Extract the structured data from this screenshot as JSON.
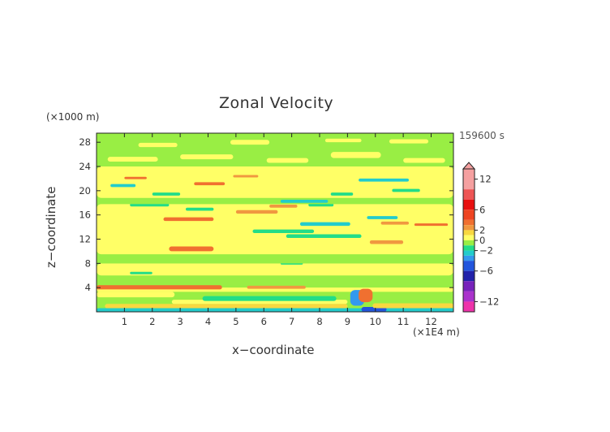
{
  "chart_data": {
    "type": "heatmap",
    "title": "Zonal Velocity",
    "xlabel": "x−coordinate",
    "ylabel": "z−coordinate",
    "x_unit": "(×1E4 m)",
    "y_unit": "(×1000 m)",
    "time_label": "159600 s",
    "xlim": [
      0,
      12.8
    ],
    "ylim": [
      0,
      29.5
    ],
    "x_ticks": [
      1,
      2,
      3,
      4,
      5,
      6,
      7,
      8,
      9,
      10,
      11,
      12
    ],
    "y_ticks": [
      4,
      8,
      12,
      16,
      20,
      24,
      28
    ],
    "colorbar": {
      "range": [
        -14,
        14
      ],
      "tick_labels": [
        "12",
        "6",
        "2",
        "0",
        "−2",
        "−6",
        "−12"
      ],
      "tick_values": [
        12,
        6,
        2,
        0,
        -2,
        -6,
        -12
      ],
      "bands": [
        {
          "from": 10,
          "to": 14,
          "color": "#f5a0a0"
        },
        {
          "from": 8,
          "to": 10,
          "color": "#ee5555"
        },
        {
          "from": 6,
          "to": 8,
          "color": "#e81010"
        },
        {
          "from": 4,
          "to": 6,
          "color": "#ee4422"
        },
        {
          "from": 3,
          "to": 4,
          "color": "#f07030"
        },
        {
          "from": 2,
          "to": 3,
          "color": "#f09840"
        },
        {
          "from": 1,
          "to": 2,
          "color": "#f8d840"
        },
        {
          "from": 0,
          "to": 1,
          "color": "#ffff66"
        },
        {
          "from": -1,
          "to": 0,
          "color": "#99ee44"
        },
        {
          "from": -2,
          "to": -1,
          "color": "#22dd88"
        },
        {
          "from": -3,
          "to": -2,
          "color": "#22cccc"
        },
        {
          "from": -4,
          "to": -3,
          "color": "#3399ee"
        },
        {
          "from": -6,
          "to": -4,
          "color": "#2255dd"
        },
        {
          "from": -8,
          "to": -6,
          "color": "#2222aa"
        },
        {
          "from": -10,
          "to": -8,
          "color": "#7722bb"
        },
        {
          "from": -12,
          "to": -10,
          "color": "#aa33cc"
        },
        {
          "from": -14,
          "to": -12,
          "color": "#ee33aa"
        }
      ]
    },
    "background_value_color": "#99ee44",
    "features": [
      {
        "x0": 0.0,
        "x1": 12.8,
        "y0": 0.0,
        "y1": 0.6,
        "color": "#22cccc"
      },
      {
        "x0": 0.3,
        "x1": 9.0,
        "y0": 0.6,
        "y1": 1.3,
        "color": "#f8d840"
      },
      {
        "x0": 2.7,
        "x1": 9.0,
        "y0": 1.3,
        "y1": 2.0,
        "color": "#ffff66"
      },
      {
        "x0": 3.8,
        "x1": 8.6,
        "y0": 1.8,
        "y1": 2.6,
        "color": "#22dd88"
      },
      {
        "x0": 0.0,
        "x1": 2.8,
        "y0": 2.4,
        "y1": 3.3,
        "color": "#ffff66"
      },
      {
        "x0": 0.0,
        "x1": 12.8,
        "y0": 3.3,
        "y1": 4.0,
        "color": "#ffff66"
      },
      {
        "x0": 0.0,
        "x1": 4.5,
        "y0": 3.7,
        "y1": 4.4,
        "color": "#f07030"
      },
      {
        "x0": 5.4,
        "x1": 7.5,
        "y0": 3.8,
        "y1": 4.3,
        "color": "#f09840"
      },
      {
        "x0": 9.1,
        "x1": 9.6,
        "y0": 1.0,
        "y1": 3.6,
        "color": "#3399ee"
      },
      {
        "x0": 9.4,
        "x1": 9.9,
        "y0": 1.6,
        "y1": 3.8,
        "color": "#f07030"
      },
      {
        "x0": 9.5,
        "x1": 10.4,
        "y0": 0.0,
        "y1": 0.8,
        "color": "#2255dd"
      },
      {
        "x0": 9.9,
        "x1": 12.8,
        "y0": 0.6,
        "y1": 1.4,
        "color": "#f8d840"
      },
      {
        "x0": 0.0,
        "x1": 12.8,
        "y0": 4.4,
        "y1": 6.0,
        "color": "#99ee44"
      },
      {
        "x0": 0.0,
        "x1": 12.8,
        "y0": 6.0,
        "y1": 8.0,
        "color": "#ffff66"
      },
      {
        "x0": 1.2,
        "x1": 2.0,
        "y0": 6.2,
        "y1": 6.6,
        "color": "#22dd88"
      },
      {
        "x0": 6.6,
        "x1": 7.4,
        "y0": 7.8,
        "y1": 8.2,
        "color": "#22dd88"
      },
      {
        "x0": 0.0,
        "x1": 12.8,
        "y0": 8.0,
        "y1": 9.5,
        "color": "#99ee44"
      },
      {
        "x0": 0.0,
        "x1": 12.8,
        "y0": 9.5,
        "y1": 17.8,
        "color": "#ffff66"
      },
      {
        "x0": 2.6,
        "x1": 4.2,
        "y0": 10.0,
        "y1": 10.8,
        "color": "#f07030"
      },
      {
        "x0": 6.8,
        "x1": 9.5,
        "y0": 12.2,
        "y1": 12.8,
        "color": "#22dd88"
      },
      {
        "x0": 9.8,
        "x1": 11.0,
        "y0": 11.2,
        "y1": 11.8,
        "color": "#f09840"
      },
      {
        "x0": 5.6,
        "x1": 7.8,
        "y0": 13.0,
        "y1": 13.6,
        "color": "#22dd88"
      },
      {
        "x0": 7.3,
        "x1": 9.1,
        "y0": 14.2,
        "y1": 14.8,
        "color": "#22cccc"
      },
      {
        "x0": 10.2,
        "x1": 11.2,
        "y0": 14.4,
        "y1": 14.9,
        "color": "#f09840"
      },
      {
        "x0": 11.4,
        "x1": 12.6,
        "y0": 14.2,
        "y1": 14.6,
        "color": "#f07030"
      },
      {
        "x0": 2.4,
        "x1": 4.2,
        "y0": 15.0,
        "y1": 15.6,
        "color": "#f07030"
      },
      {
        "x0": 9.7,
        "x1": 10.8,
        "y0": 15.3,
        "y1": 15.8,
        "color": "#22cccc"
      },
      {
        "x0": 5.0,
        "x1": 6.5,
        "y0": 16.2,
        "y1": 16.8,
        "color": "#f09840"
      },
      {
        "x0": 3.2,
        "x1": 4.2,
        "y0": 16.7,
        "y1": 17.2,
        "color": "#22dd88"
      },
      {
        "x0": 1.2,
        "x1": 2.6,
        "y0": 17.4,
        "y1": 17.9,
        "color": "#22dd88"
      },
      {
        "x0": 6.2,
        "x1": 7.2,
        "y0": 17.2,
        "y1": 17.7,
        "color": "#f09840"
      },
      {
        "x0": 7.6,
        "x1": 8.5,
        "y0": 17.4,
        "y1": 17.9,
        "color": "#22dd88"
      },
      {
        "x0": 0.0,
        "x1": 12.8,
        "y0": 17.8,
        "y1": 18.8,
        "color": "#99ee44"
      },
      {
        "x0": 6.6,
        "x1": 8.3,
        "y0": 18.0,
        "y1": 18.5,
        "color": "#22cccc"
      },
      {
        "x0": 0.0,
        "x1": 12.8,
        "y0": 18.8,
        "y1": 24.0,
        "color": "#ffff66"
      },
      {
        "x0": 2.0,
        "x1": 3.0,
        "y0": 19.2,
        "y1": 19.7,
        "color": "#22dd88"
      },
      {
        "x0": 8.4,
        "x1": 9.2,
        "y0": 19.2,
        "y1": 19.7,
        "color": "#22dd88"
      },
      {
        "x0": 10.6,
        "x1": 11.6,
        "y0": 19.8,
        "y1": 20.3,
        "color": "#22dd88"
      },
      {
        "x0": 0.5,
        "x1": 1.4,
        "y0": 20.6,
        "y1": 21.1,
        "color": "#22cccc"
      },
      {
        "x0": 3.5,
        "x1": 4.6,
        "y0": 20.9,
        "y1": 21.4,
        "color": "#f07030"
      },
      {
        "x0": 9.4,
        "x1": 11.2,
        "y0": 21.5,
        "y1": 22.0,
        "color": "#22cccc"
      },
      {
        "x0": 1.0,
        "x1": 1.8,
        "y0": 21.9,
        "y1": 22.3,
        "color": "#f07030"
      },
      {
        "x0": 4.9,
        "x1": 5.8,
        "y0": 22.2,
        "y1": 22.6,
        "color": "#f09840"
      },
      {
        "x0": 0.0,
        "x1": 12.8,
        "y0": 24.0,
        "y1": 29.5,
        "color": "#99ee44"
      },
      {
        "x0": 0.4,
        "x1": 2.2,
        "y0": 24.8,
        "y1": 25.6,
        "color": "#ffff66"
      },
      {
        "x0": 3.0,
        "x1": 4.9,
        "y0": 25.2,
        "y1": 26.0,
        "color": "#ffff66"
      },
      {
        "x0": 6.1,
        "x1": 7.6,
        "y0": 24.6,
        "y1": 25.4,
        "color": "#ffff66"
      },
      {
        "x0": 8.4,
        "x1": 10.2,
        "y0": 25.4,
        "y1": 26.4,
        "color": "#ffff66"
      },
      {
        "x0": 11.0,
        "x1": 12.5,
        "y0": 24.6,
        "y1": 25.4,
        "color": "#ffff66"
      },
      {
        "x0": 1.5,
        "x1": 2.9,
        "y0": 27.2,
        "y1": 27.9,
        "color": "#ffff66"
      },
      {
        "x0": 4.8,
        "x1": 6.2,
        "y0": 27.6,
        "y1": 28.4,
        "color": "#ffff66"
      },
      {
        "x0": 8.2,
        "x1": 9.5,
        "y0": 28.0,
        "y1": 28.6,
        "color": "#ffff66"
      },
      {
        "x0": 10.5,
        "x1": 11.9,
        "y0": 27.8,
        "y1": 28.5,
        "color": "#ffff66"
      }
    ]
  }
}
